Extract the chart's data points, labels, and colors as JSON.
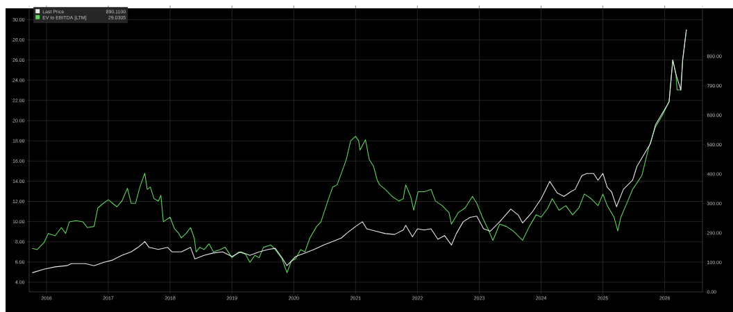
{
  "chart_data": {
    "type": "line",
    "xlim": [
      2016.22,
      2027.11
    ],
    "xticks": [
      {
        "value": 2016.5,
        "label": "2016"
      },
      {
        "value": 2017.5,
        "label": "2017"
      },
      {
        "value": 2018.5,
        "label": "2018"
      },
      {
        "value": 2019.5,
        "label": "2019"
      },
      {
        "value": 2020.5,
        "label": "2020"
      },
      {
        "value": 2021.5,
        "label": "2021"
      },
      {
        "value": 2022.5,
        "label": "2022"
      },
      {
        "value": 2023.5,
        "label": "2023"
      },
      {
        "value": 2024.5,
        "label": "2024"
      },
      {
        "value": 2025.5,
        "label": "2025"
      },
      {
        "value": 2026.5,
        "label": "2026"
      }
    ],
    "ylim": [
      3.04,
      31.4
    ],
    "yticks": [
      {
        "value": 4,
        "label": "4.00"
      },
      {
        "value": 6,
        "label": "6.00"
      },
      {
        "value": 8,
        "label": "8.00"
      },
      {
        "value": 10,
        "label": "10.00"
      },
      {
        "value": 12,
        "label": "12.00"
      },
      {
        "value": 14,
        "label": "14.00"
      },
      {
        "value": 16,
        "label": "16.00"
      },
      {
        "value": 18,
        "label": "18.00"
      },
      {
        "value": 20,
        "label": "20.00"
      },
      {
        "value": 22,
        "label": "22.00"
      },
      {
        "value": 24,
        "label": "24.00"
      },
      {
        "value": 26,
        "label": "26.00"
      },
      {
        "value": 28,
        "label": "28.00"
      },
      {
        "value": 30,
        "label": "30.00"
      }
    ],
    "y2lim": [
      0,
      972
    ],
    "y2ticks": [
      {
        "value": 0,
        "label": "0.00"
      },
      {
        "value": 100,
        "label": "100.00"
      },
      {
        "value": 200,
        "label": "200.00"
      },
      {
        "value": 300,
        "label": "300.00"
      },
      {
        "value": 400,
        "label": "400.00"
      },
      {
        "value": 500,
        "label": "500.00"
      },
      {
        "value": 600,
        "label": "600.00"
      },
      {
        "value": 700,
        "label": "700.00"
      },
      {
        "value": 800,
        "label": "800.00"
      }
    ],
    "grid": true,
    "legend": "top left",
    "annotations": [
      "890.1100",
      "29.0305"
    ],
    "series": [
      {
        "name": "Last Price",
        "color": "#e8e8e8",
        "axis": "y2",
        "x": [
          2016.27,
          2016.46,
          2016.64,
          2016.83,
          2016.9,
          2017.13,
          2017.27,
          2017.42,
          2017.57,
          2017.72,
          2017.87,
          2017.98,
          2018.05,
          2018.09,
          2018.16,
          2018.31,
          2018.46,
          2018.53,
          2018.68,
          2018.83,
          2018.9,
          2019.05,
          2019.2,
          2019.35,
          2019.5,
          2019.64,
          2019.79,
          2019.94,
          2020.09,
          2020.2,
          2020.31,
          2020.39,
          2020.53,
          2020.68,
          2020.83,
          2020.98,
          2021.13,
          2021.27,
          2021.35,
          2021.5,
          2021.61,
          2021.68,
          2021.83,
          2021.98,
          2022.13,
          2022.27,
          2022.31,
          2022.42,
          2022.5,
          2022.61,
          2022.72,
          2022.83,
          2022.94,
          2023.05,
          2023.13,
          2023.24,
          2023.35,
          2023.46,
          2023.57,
          2023.68,
          2023.83,
          2024.01,
          2024.13,
          2024.2,
          2024.35,
          2024.5,
          2024.64,
          2024.76,
          2024.87,
          2024.98,
          2025.05,
          2025.16,
          2025.24,
          2025.35,
          2025.42,
          2025.5,
          2025.57,
          2025.64,
          2025.72,
          2025.83,
          2025.98,
          2026.05,
          2026.16,
          2026.27,
          2026.35,
          2026.46,
          2026.57,
          2026.63,
          2026.68,
          2026.76,
          2026.79,
          2026.85
        ],
        "values": [
          65,
          77,
          85,
          89,
          96,
          96,
          89,
          100,
          108,
          124,
          136,
          151,
          163,
          171,
          151,
          144,
          151,
          136,
          136,
          151,
          112,
          124,
          132,
          136,
          120,
          136,
          124,
          136,
          144,
          148,
          116,
          89,
          120,
          132,
          144,
          159,
          171,
          183,
          198,
          222,
          238,
          214,
          206,
          198,
          195,
          210,
          226,
          187,
          214,
          210,
          214,
          179,
          191,
          159,
          198,
          238,
          253,
          257,
          214,
          206,
          238,
          281,
          261,
          234,
          269,
          316,
          375,
          336,
          324,
          340,
          348,
          395,
          402,
          402,
          379,
          402,
          355,
          340,
          289,
          348,
          379,
          426,
          465,
          504,
          567,
          606,
          645,
          787,
          740,
          685,
          787,
          890
        ]
      },
      {
        "name": "EV to EBITDA [LTM]",
        "color": "#5fd35f",
        "x": [
          2016.27,
          2016.35,
          2016.46,
          2016.53,
          2016.64,
          2016.74,
          2016.81,
          2016.87,
          2016.98,
          2017.09,
          2017.16,
          2017.27,
          2017.33,
          2017.42,
          2017.5,
          2017.57,
          2017.64,
          2017.72,
          2017.81,
          2017.87,
          2017.94,
          2018.01,
          2018.09,
          2018.13,
          2018.18,
          2018.24,
          2018.31,
          2018.35,
          2018.39,
          2018.5,
          2018.57,
          2018.64,
          2018.68,
          2018.76,
          2018.83,
          2018.89,
          2018.92,
          2018.98,
          2019.05,
          2019.13,
          2019.2,
          2019.31,
          2019.39,
          2019.5,
          2019.61,
          2019.72,
          2019.79,
          2019.87,
          2019.94,
          2020.01,
          2020.13,
          2020.2,
          2020.31,
          2020.39,
          2020.46,
          2020.53,
          2020.61,
          2020.68,
          2020.76,
          2020.87,
          2020.94,
          2021.05,
          2021.13,
          2021.2,
          2021.27,
          2021.35,
          2021.42,
          2021.5,
          2021.55,
          2021.57,
          2021.66,
          2021.72,
          2021.79,
          2021.85,
          2021.89,
          2021.98,
          2022.09,
          2022.2,
          2022.27,
          2022.31,
          2022.39,
          2022.44,
          2022.51,
          2022.61,
          2022.72,
          2022.79,
          2022.9,
          2023.01,
          2023.05,
          2023.16,
          2023.27,
          2023.39,
          2023.46,
          2023.55,
          2023.64,
          2023.72,
          2023.83,
          2023.94,
          2024.05,
          2024.2,
          2024.31,
          2024.42,
          2024.5,
          2024.61,
          2024.68,
          2024.79,
          2024.9,
          2025.01,
          2025.11,
          2025.2,
          2025.31,
          2025.42,
          2025.5,
          2025.57,
          2025.68,
          2025.74,
          2025.79,
          2025.87,
          2025.98,
          2026.13,
          2026.24,
          2026.35,
          2026.46,
          2026.57,
          2026.63,
          2026.68,
          2026.7,
          2026.76,
          2026.79,
          2026.85
        ],
        "values": [
          7.35,
          7.23,
          7.92,
          8.83,
          8.6,
          9.41,
          8.83,
          9.98,
          10.1,
          9.98,
          9.41,
          9.52,
          11.35,
          11.81,
          12.16,
          11.81,
          11.47,
          12.04,
          13.3,
          11.81,
          11.81,
          13.42,
          14.79,
          13.19,
          13.42,
          12.27,
          12.04,
          12.61,
          9.98,
          10.44,
          9.29,
          8.83,
          8.38,
          8.83,
          9.41,
          8.38,
          7.0,
          7.46,
          7.23,
          7.8,
          7.0,
          7.23,
          7.46,
          6.43,
          7.0,
          6.77,
          5.97,
          6.66,
          6.43,
          7.46,
          7.69,
          7.23,
          6.32,
          4.94,
          6.08,
          6.32,
          7.23,
          7.0,
          8.38,
          9.52,
          9.98,
          12.04,
          13.42,
          13.64,
          14.79,
          16.16,
          18.0,
          18.45,
          18.0,
          17.08,
          18.11,
          16.16,
          15.48,
          14.1,
          13.64,
          13.19,
          12.5,
          12.04,
          12.27,
          13.64,
          12.5,
          11.13,
          12.96,
          12.96,
          13.19,
          12.04,
          11.58,
          10.89,
          9.75,
          10.89,
          11.35,
          12.5,
          11.81,
          10.44,
          9.29,
          8.14,
          9.75,
          9.52,
          9.07,
          8.14,
          9.52,
          10.67,
          10.44,
          11.35,
          12.27,
          11.13,
          11.58,
          10.67,
          11.35,
          12.73,
          12.27,
          11.58,
          12.73,
          11.58,
          10.44,
          9.07,
          10.44,
          11.58,
          13.19,
          14.56,
          17.31,
          19.37,
          20.52,
          21.89,
          26.01,
          24.64,
          23.04,
          23.04,
          26.01,
          29.03
        ]
      }
    ]
  }
}
